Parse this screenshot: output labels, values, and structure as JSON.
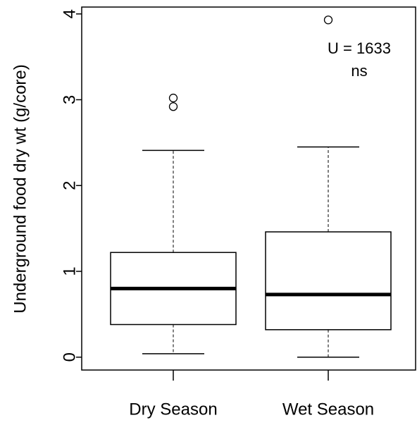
{
  "chart_data": {
    "type": "box",
    "y_label": "Underground food dry wt (g/core)",
    "categories": [
      "Dry Season",
      "Wet Season"
    ],
    "boxes": [
      {
        "whislo": 0.04,
        "q1": 0.38,
        "med": 0.8,
        "q3": 1.22,
        "whishi": 2.41,
        "fliers": [
          3.02,
          2.92
        ]
      },
      {
        "whislo": 0,
        "q1": 0.32,
        "med": 0.73,
        "q3": 1.46,
        "whishi": 2.45,
        "fliers": [
          3.93
        ]
      }
    ],
    "color": "#000000",
    "ylim": [
      -0.15,
      4.08
    ],
    "yticks": [
      0,
      1,
      2,
      3,
      4
    ],
    "annotations": [
      "U = 1633",
      "ns"
    ]
  }
}
